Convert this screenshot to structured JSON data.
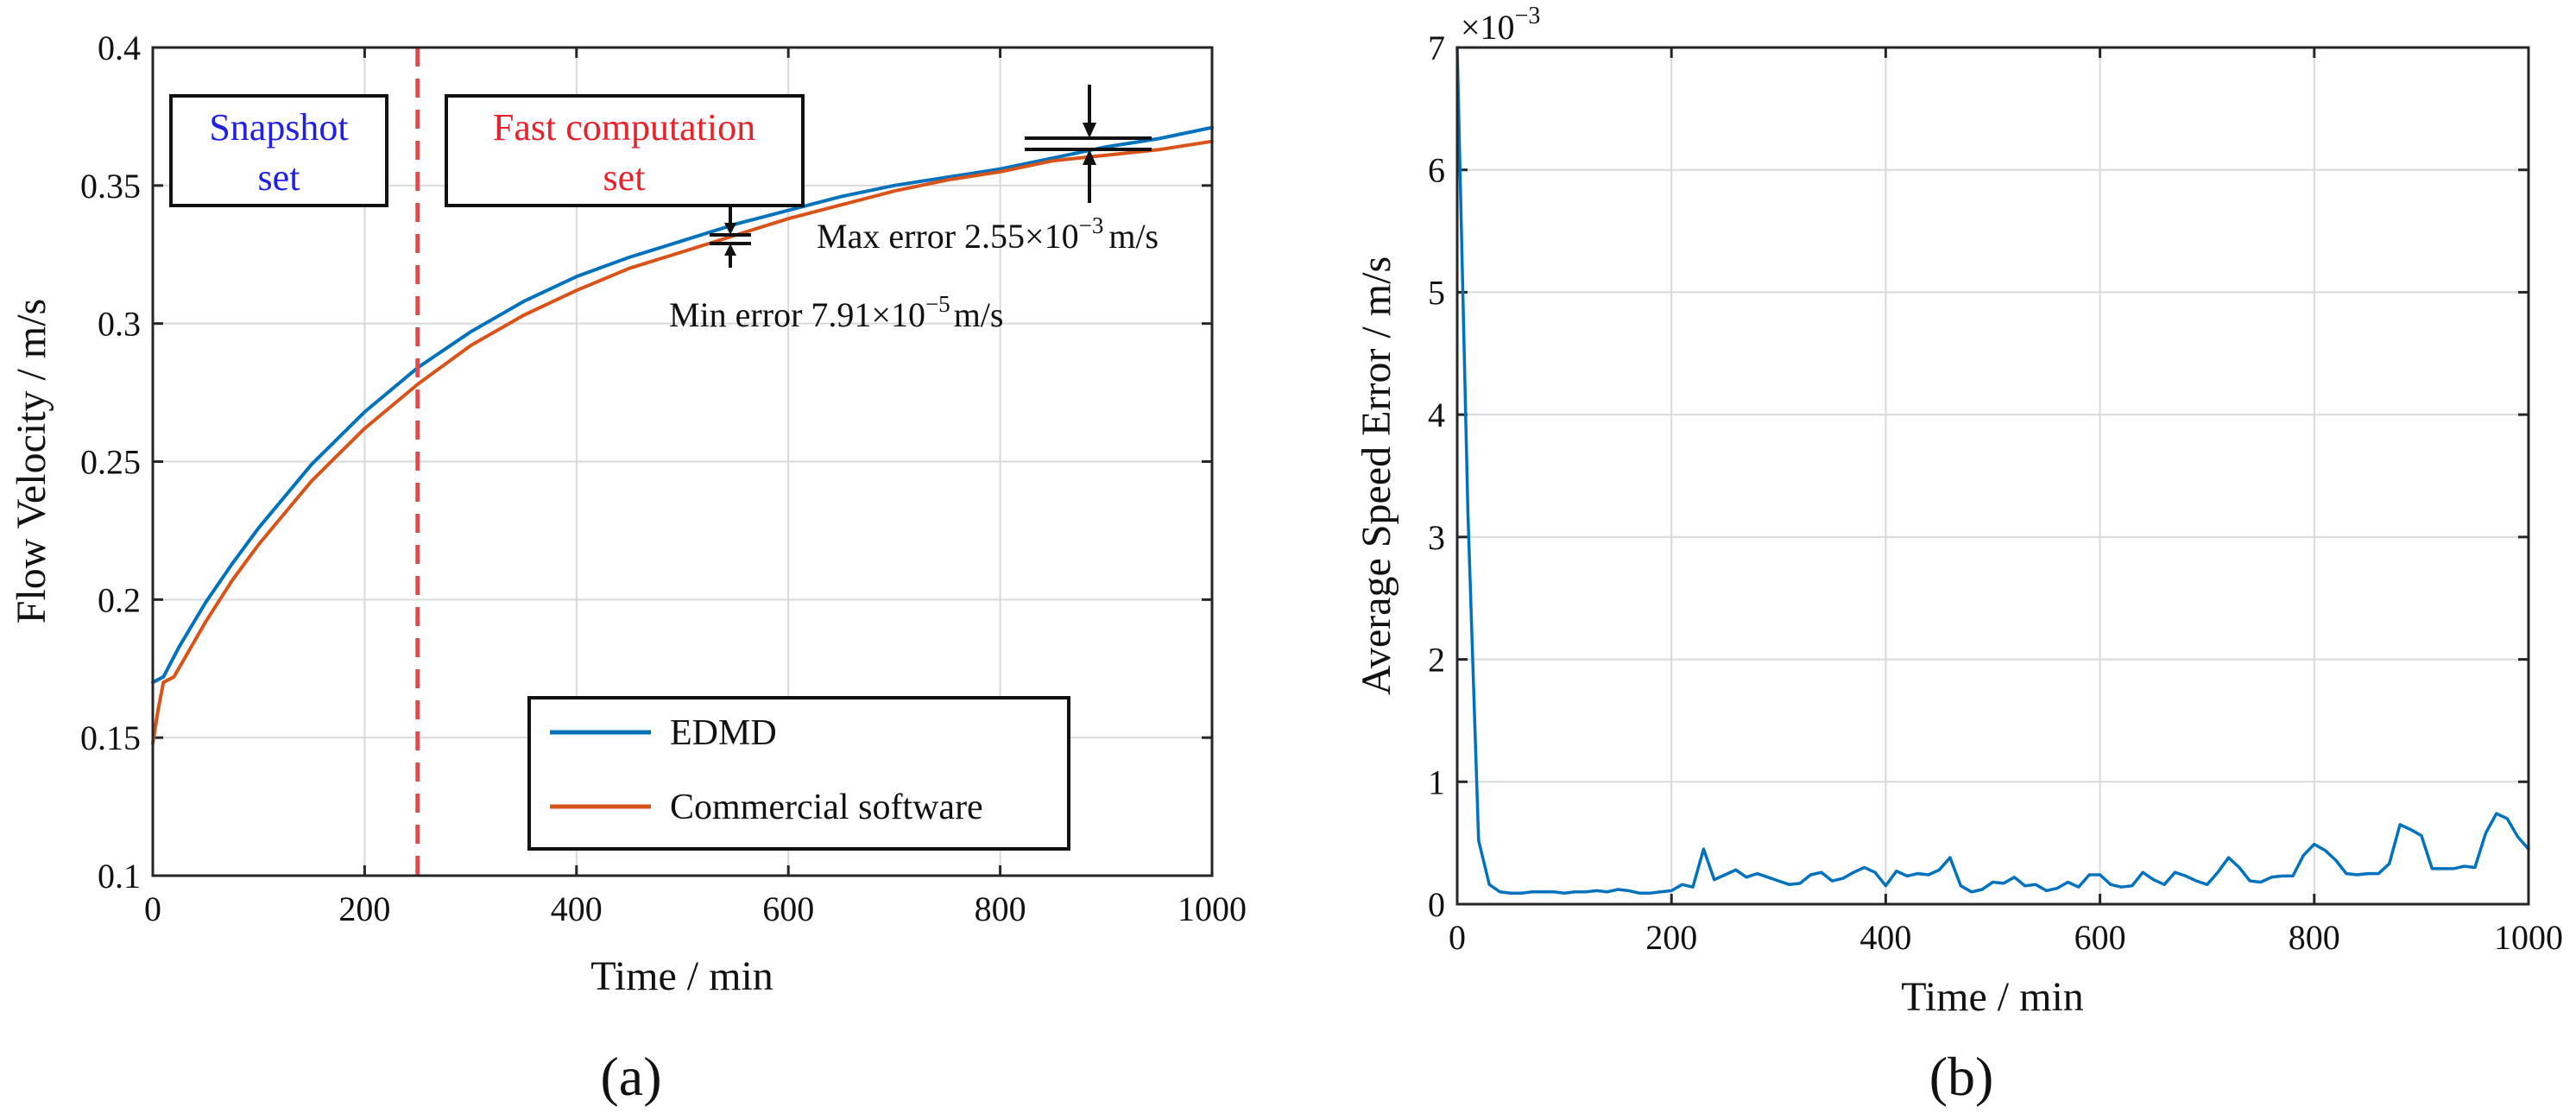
{
  "colors": {
    "edmd": "#0072BD",
    "commercial": "#D95319",
    "split": "#E8474C",
    "snapshot_text": "#1F1FE6",
    "fast_text": "#E8212B"
  },
  "chart_data": [
    {
      "id": "a",
      "type": "line",
      "panel_label": "(a)",
      "xlabel": "Time / min",
      "ylabel": "Flow Velocity / m/s",
      "xlim": [
        0,
        1000
      ],
      "ylim": [
        0.1,
        0.4
      ],
      "xticks": [
        0,
        200,
        400,
        600,
        800,
        1000
      ],
      "xtick_labels": [
        "0",
        "200",
        "400",
        "600",
        "800",
        "1000"
      ],
      "yticks": [
        0.1,
        0.15,
        0.2,
        0.25,
        0.3,
        0.35,
        0.4
      ],
      "ytick_labels": [
        "0.1",
        "0.15",
        "0.2",
        "0.25",
        "0.3",
        "0.35",
        "0.4"
      ],
      "grid": true,
      "legend_position": "bottom-center",
      "split_line_x": 250,
      "series": [
        {
          "name": "EDMD",
          "x": [
            0,
            10,
            25,
            50,
            75,
            100,
            150,
            200,
            250,
            300,
            350,
            400,
            450,
            500,
            550,
            600,
            650,
            700,
            750,
            800,
            850,
            900,
            950,
            1000
          ],
          "y": [
            0.17,
            0.172,
            0.183,
            0.199,
            0.213,
            0.226,
            0.249,
            0.268,
            0.284,
            0.297,
            0.308,
            0.317,
            0.324,
            0.33,
            0.336,
            0.341,
            0.346,
            0.35,
            0.353,
            0.356,
            0.36,
            0.364,
            0.367,
            0.371
          ]
        },
        {
          "name": "Commercial software",
          "x": [
            0,
            5,
            10,
            20,
            50,
            75,
            100,
            150,
            200,
            250,
            300,
            350,
            400,
            450,
            500,
            550,
            600,
            650,
            700,
            750,
            800,
            850,
            900,
            950,
            1000
          ],
          "y": [
            0.148,
            0.16,
            0.17,
            0.172,
            0.192,
            0.207,
            0.22,
            0.243,
            0.262,
            0.278,
            0.292,
            0.303,
            0.312,
            0.32,
            0.326,
            0.332,
            0.338,
            0.343,
            0.348,
            0.352,
            0.355,
            0.359,
            0.361,
            0.363,
            0.366
          ]
        }
      ],
      "region_boxes": [
        {
          "name": "snapshot",
          "line1": "Snapshot",
          "line2": "set"
        },
        {
          "name": "fast-computation",
          "line1": "Fast computation",
          "line2": "set"
        }
      ],
      "annotations": {
        "max_error": {
          "prefix": "Max error 2.55×10",
          "exp": "−3",
          "unit": "m/s",
          "at_x": 880
        },
        "min_error": {
          "prefix": "Min error  7.91×10",
          "exp": "−5",
          "unit": "m/s",
          "at_x": 545
        }
      }
    },
    {
      "id": "b",
      "type": "line",
      "panel_label": "(b)",
      "xlabel": "Time / min",
      "ylabel": "Average Speed Error / m/s",
      "xlim": [
        0,
        1000
      ],
      "ylim": [
        0,
        7
      ],
      "y_multiplier_base": "×10",
      "y_multiplier_exp": "−3",
      "xticks": [
        0,
        200,
        400,
        600,
        800,
        1000
      ],
      "xtick_labels": [
        "0",
        "200",
        "400",
        "600",
        "800",
        "1000"
      ],
      "yticks": [
        0,
        1,
        2,
        3,
        4,
        5,
        6,
        7
      ],
      "ytick_labels": [
        "0",
        "1",
        "2",
        "3",
        "4",
        "5",
        "6",
        "7"
      ],
      "grid": true,
      "series": [
        {
          "name": "Average speed error",
          "x": [
            0,
            10,
            20,
            30,
            40,
            50,
            60,
            70,
            80,
            90,
            100,
            110,
            120,
            130,
            140,
            150,
            160,
            170,
            180,
            190,
            200,
            210,
            220,
            230,
            240,
            250,
            260,
            270,
            280,
            290,
            300,
            310,
            320,
            330,
            340,
            350,
            360,
            370,
            380,
            390,
            400,
            410,
            420,
            430,
            440,
            450,
            460,
            470,
            480,
            490,
            500,
            510,
            520,
            530,
            540,
            550,
            560,
            570,
            580,
            590,
            600,
            610,
            620,
            630,
            640,
            650,
            660,
            670,
            680,
            690,
            700,
            710,
            720,
            730,
            740,
            750,
            760,
            770,
            780,
            790,
            800,
            810,
            820,
            830,
            840,
            850,
            860,
            870,
            880,
            890,
            900,
            910,
            920,
            930,
            940,
            950,
            960,
            970,
            980,
            990,
            1000
          ],
          "y": [
            7.0,
            3.2,
            0.52,
            0.16,
            0.1,
            0.09,
            0.09,
            0.1,
            0.1,
            0.1,
            0.09,
            0.1,
            0.1,
            0.11,
            0.1,
            0.12,
            0.11,
            0.09,
            0.09,
            0.1,
            0.11,
            0.16,
            0.14,
            0.45,
            0.2,
            0.24,
            0.28,
            0.22,
            0.25,
            0.22,
            0.19,
            0.16,
            0.17,
            0.24,
            0.26,
            0.19,
            0.21,
            0.26,
            0.3,
            0.26,
            0.15,
            0.27,
            0.23,
            0.25,
            0.24,
            0.28,
            0.38,
            0.15,
            0.1,
            0.12,
            0.18,
            0.17,
            0.22,
            0.15,
            0.16,
            0.11,
            0.13,
            0.18,
            0.14,
            0.24,
            0.24,
            0.16,
            0.14,
            0.15,
            0.26,
            0.2,
            0.16,
            0.26,
            0.23,
            0.19,
            0.16,
            0.26,
            0.38,
            0.3,
            0.19,
            0.18,
            0.22,
            0.23,
            0.23,
            0.4,
            0.49,
            0.44,
            0.36,
            0.25,
            0.24,
            0.25,
            0.25,
            0.33,
            0.65,
            0.61,
            0.56,
            0.29,
            0.29,
            0.29,
            0.31,
            0.3,
            0.58,
            0.74,
            0.7,
            0.55,
            0.45
          ]
        }
      ]
    }
  ],
  "legend": {
    "edmd_label": "EDMD",
    "commercial_label": "Commercial software"
  }
}
